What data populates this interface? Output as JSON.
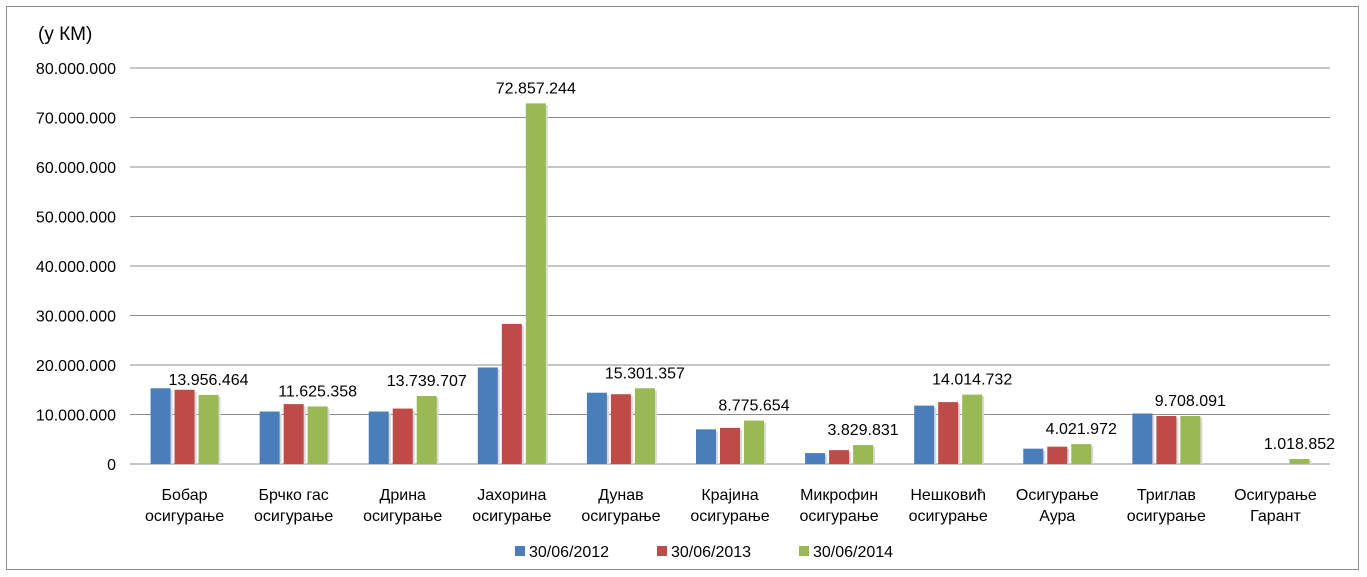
{
  "chart_data": {
    "type": "bar",
    "unit_label": "(у КМ)",
    "categories": [
      [
        "Бобар",
        "осигурање"
      ],
      [
        "Брчко гас",
        "осигурање"
      ],
      [
        "Дрина",
        "осигурање"
      ],
      [
        "Јахорина",
        "осигурање"
      ],
      [
        "Дунав",
        "осигурање"
      ],
      [
        "Крајина",
        "осигурање"
      ],
      [
        "Микрофин",
        "осигурање"
      ],
      [
        "Нешковић",
        "осигурање"
      ],
      [
        "Осигурање",
        "Аура"
      ],
      [
        "Триглав",
        "осигурање"
      ],
      [
        "Осигурање",
        "Гарант"
      ]
    ],
    "series": [
      {
        "name": "30/06/2012",
        "color": "#4a7ebb",
        "values": [
          15300000,
          10600000,
          10600000,
          19500000,
          14400000,
          7000000,
          2200000,
          11800000,
          3100000,
          10200000,
          0
        ]
      },
      {
        "name": "30/06/2013",
        "color": "#be4b48",
        "values": [
          15000000,
          12100000,
          11200000,
          28300000,
          14100000,
          7300000,
          2800000,
          12500000,
          3500000,
          9700000,
          0
        ]
      },
      {
        "name": "30/06/2014",
        "color": "#98b954",
        "values": [
          13956464,
          11625358,
          13739707,
          72857244,
          15301357,
          8775654,
          3829831,
          14014732,
          4021972,
          9708091,
          1018852
        ]
      }
    ],
    "data_labels": [
      "13.956.464",
      "11.625.358",
      "13.739.707",
      "72.857.244",
      "15.301.357",
      "8.775.654",
      "3.829.831",
      "14.014.732",
      "4.021.972",
      "9.708.091",
      "1.018.852"
    ],
    "ylim": [
      0,
      80000000
    ],
    "yticks": [
      0,
      10000000,
      20000000,
      30000000,
      40000000,
      50000000,
      60000000,
      70000000,
      80000000
    ],
    "ytick_labels": [
      "0",
      "10.000.000",
      "20.000.000",
      "30.000.000",
      "40.000.000",
      "50.000.000",
      "60.000.000",
      "70.000.000",
      "80.000.000"
    ],
    "grid": true,
    "legend_position": "bottom"
  }
}
